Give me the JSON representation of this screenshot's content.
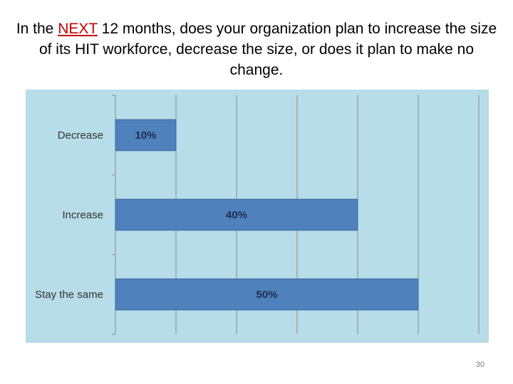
{
  "slide": {
    "title_before": "In the ",
    "title_emphasis": "NEXT",
    "title_after": " 12 months, does your organization plan to increase the size of its HIT workforce, decrease the size, or does it plan to make no change.",
    "page_number": "30"
  },
  "colors": {
    "plot_background": "#b7dde8",
    "bar_fill": "#4f81bd",
    "bar_border": "#3a66a0",
    "grid": "#8c8c8c",
    "title_emphasis": "#c00000"
  },
  "chart_data": {
    "type": "bar",
    "orientation": "horizontal",
    "title": "",
    "xlabel": "",
    "ylabel": "",
    "xlim": [
      0,
      60
    ],
    "grid": true,
    "legend": "none",
    "categories": [
      "Decrease",
      "Increase",
      "Stay the same"
    ],
    "values": [
      10,
      40,
      50
    ],
    "data_labels": [
      "10%",
      "40%",
      "50%"
    ]
  }
}
